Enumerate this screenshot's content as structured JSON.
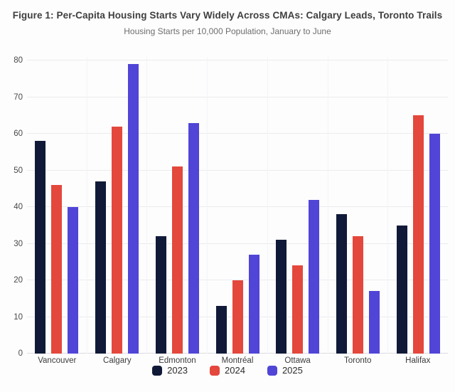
{
  "chart_data": {
    "type": "bar",
    "title": "Figure 1: Per-Capita Housing Starts Vary Widely Across CMAs: Calgary Leads, Toronto Trails",
    "subtitle": "Housing Starts per 10,000 Population, January to June",
    "categories": [
      "Vancouver",
      "Calgary",
      "Edmonton",
      "Montréal",
      "Ottawa",
      "Toronto",
      "Halifax"
    ],
    "series": [
      {
        "name": "2023",
        "color": "#101a38",
        "values": [
          58,
          47,
          32,
          13,
          31,
          38,
          35
        ]
      },
      {
        "name": "2024",
        "color": "#e4473c",
        "values": [
          46,
          62,
          51,
          20,
          24,
          32,
          65
        ]
      },
      {
        "name": "2025",
        "color": "#5045d6",
        "values": [
          40,
          79,
          63,
          27,
          42,
          17,
          60
        ]
      }
    ],
    "xlabel": "",
    "ylabel": "",
    "ylim": [
      0,
      80
    ],
    "yticks": [
      0,
      10,
      20,
      30,
      40,
      50,
      60,
      70,
      80
    ],
    "grid": true,
    "legend_position": "bottom"
  },
  "style": {
    "grid_color": "#ebebf0",
    "vertical_grid_color": "#f4f4f8",
    "baseline_color": "#dcdce2",
    "axis_text_color": "#484848",
    "category_text_color": "#3c3c3c",
    "title_color": "#3e3e3e",
    "subtitle_color": "#6e6e6e",
    "background": "#fdfdfd"
  }
}
